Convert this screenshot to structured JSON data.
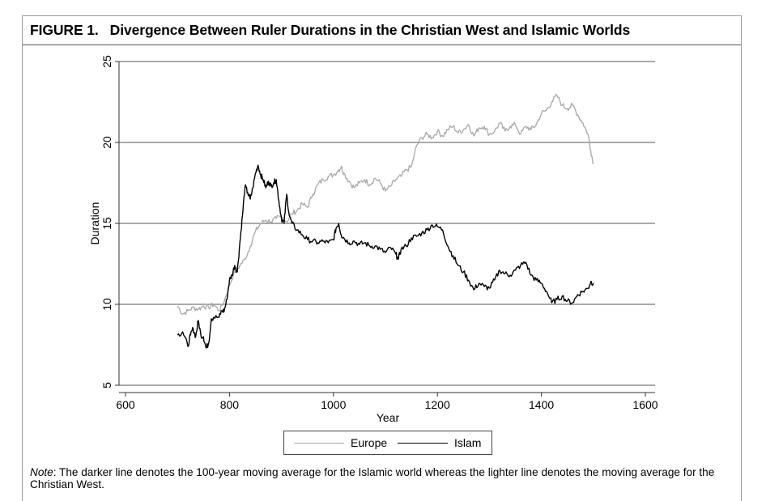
{
  "figure": {
    "label": "FIGURE 1.",
    "title": "Divergence Between Ruler Durations in the Christian West and Islamic Worlds"
  },
  "note": {
    "prefix": "Note",
    "text": ": The darker line denotes the 100-year moving average for the Islamic world whereas the lighter line denotes the moving average for the Christian West."
  },
  "chart_data": {
    "type": "line",
    "xlabel": "Year",
    "ylabel": "Duration",
    "xlim": [
      600,
      1600
    ],
    "ylim": [
      5,
      25
    ],
    "xticks": [
      600,
      800,
      1000,
      1200,
      1400,
      1600
    ],
    "yticks": [
      5,
      10,
      15,
      20,
      25
    ],
    "grid": "horizontal",
    "legend_position": "bottom-center",
    "series": [
      {
        "name": "Europe",
        "color": "#a8a8a8",
        "points": [
          [
            700,
            9.9
          ],
          [
            710,
            9.4
          ],
          [
            720,
            9.6
          ],
          [
            730,
            9.8
          ],
          [
            740,
            9.7
          ],
          [
            750,
            9.9
          ],
          [
            760,
            9.8
          ],
          [
            770,
            10.0
          ],
          [
            780,
            9.6
          ],
          [
            790,
            10.2
          ],
          [
            800,
            11.2
          ],
          [
            810,
            12.0
          ],
          [
            820,
            12.4
          ],
          [
            830,
            12.8
          ],
          [
            840,
            13.6
          ],
          [
            850,
            14.5
          ],
          [
            860,
            15.0
          ],
          [
            870,
            15.2
          ],
          [
            880,
            15.1
          ],
          [
            890,
            15.3
          ],
          [
            900,
            15.4
          ],
          [
            910,
            15.1
          ],
          [
            920,
            15.6
          ],
          [
            930,
            15.8
          ],
          [
            940,
            16.2
          ],
          [
            950,
            16.0
          ],
          [
            960,
            16.8
          ],
          [
            970,
            17.4
          ],
          [
            980,
            17.7
          ],
          [
            990,
            17.9
          ],
          [
            1000,
            18.0
          ],
          [
            1010,
            18.3
          ],
          [
            1015,
            18.5
          ],
          [
            1020,
            18.1
          ],
          [
            1030,
            17.6
          ],
          [
            1040,
            17.2
          ],
          [
            1050,
            17.5
          ],
          [
            1060,
            17.7
          ],
          [
            1070,
            17.4
          ],
          [
            1080,
            17.8
          ],
          [
            1090,
            17.5
          ],
          [
            1100,
            17.0
          ],
          [
            1110,
            17.3
          ],
          [
            1120,
            17.7
          ],
          [
            1130,
            17.9
          ],
          [
            1140,
            18.3
          ],
          [
            1150,
            18.5
          ],
          [
            1160,
            19.8
          ],
          [
            1170,
            20.3
          ],
          [
            1180,
            20.5
          ],
          [
            1190,
            20.3
          ],
          [
            1200,
            20.7
          ],
          [
            1210,
            20.4
          ],
          [
            1220,
            20.8
          ],
          [
            1230,
            21.0
          ],
          [
            1240,
            20.6
          ],
          [
            1250,
            20.8
          ],
          [
            1260,
            21.1
          ],
          [
            1270,
            20.4
          ],
          [
            1280,
            20.9
          ],
          [
            1290,
            21.0
          ],
          [
            1300,
            20.5
          ],
          [
            1310,
            20.7
          ],
          [
            1320,
            21.2
          ],
          [
            1330,
            20.7
          ],
          [
            1340,
            21.0
          ],
          [
            1350,
            21.1
          ],
          [
            1360,
            20.5
          ],
          [
            1370,
            21.0
          ],
          [
            1380,
            20.8
          ],
          [
            1390,
            21.1
          ],
          [
            1400,
            21.8
          ],
          [
            1410,
            22.0
          ],
          [
            1420,
            22.5
          ],
          [
            1430,
            22.9
          ],
          [
            1440,
            22.3
          ],
          [
            1450,
            22.1
          ],
          [
            1460,
            22.3
          ],
          [
            1470,
            21.7
          ],
          [
            1480,
            21.2
          ],
          [
            1490,
            20.5
          ],
          [
            1495,
            19.5
          ],
          [
            1500,
            18.7
          ]
        ]
      },
      {
        "name": "Islam",
        "color": "#000000",
        "points": [
          [
            700,
            8.1
          ],
          [
            710,
            8.3
          ],
          [
            720,
            7.4
          ],
          [
            725,
            8.1
          ],
          [
            730,
            8.5
          ],
          [
            735,
            8.0
          ],
          [
            740,
            9.0
          ],
          [
            745,
            8.1
          ],
          [
            750,
            8.0
          ],
          [
            755,
            7.3
          ],
          [
            760,
            7.6
          ],
          [
            765,
            9.1
          ],
          [
            770,
            9.2
          ],
          [
            780,
            9.2
          ],
          [
            785,
            9.6
          ],
          [
            790,
            9.6
          ],
          [
            795,
            10.3
          ],
          [
            800,
            11.5
          ],
          [
            805,
            11.8
          ],
          [
            810,
            12.4
          ],
          [
            815,
            12.0
          ],
          [
            820,
            13.8
          ],
          [
            825,
            15.5
          ],
          [
            830,
            17.3
          ],
          [
            835,
            16.9
          ],
          [
            840,
            16.5
          ],
          [
            845,
            17.2
          ],
          [
            850,
            18.1
          ],
          [
            855,
            18.6
          ],
          [
            860,
            18.0
          ],
          [
            865,
            17.7
          ],
          [
            870,
            17.2
          ],
          [
            875,
            17.6
          ],
          [
            880,
            17.3
          ],
          [
            885,
            17.5
          ],
          [
            890,
            17.7
          ],
          [
            895,
            16.4
          ],
          [
            900,
            15.3
          ],
          [
            905,
            15.0
          ],
          [
            910,
            16.8
          ],
          [
            915,
            15.5
          ],
          [
            920,
            15.0
          ],
          [
            930,
            14.6
          ],
          [
            940,
            14.3
          ],
          [
            950,
            14.0
          ],
          [
            960,
            13.9
          ],
          [
            970,
            13.8
          ],
          [
            980,
            13.9
          ],
          [
            990,
            13.8
          ],
          [
            1000,
            14.0
          ],
          [
            1005,
            14.7
          ],
          [
            1010,
            15.0
          ],
          [
            1015,
            14.3
          ],
          [
            1020,
            14.1
          ],
          [
            1030,
            13.8
          ],
          [
            1040,
            13.9
          ],
          [
            1050,
            13.7
          ],
          [
            1060,
            13.8
          ],
          [
            1070,
            13.6
          ],
          [
            1080,
            13.6
          ],
          [
            1090,
            13.4
          ],
          [
            1100,
            13.2
          ],
          [
            1110,
            13.5
          ],
          [
            1120,
            13.1
          ],
          [
            1125,
            12.8
          ],
          [
            1130,
            13.4
          ],
          [
            1140,
            13.6
          ],
          [
            1150,
            14.1
          ],
          [
            1160,
            14.2
          ],
          [
            1170,
            14.4
          ],
          [
            1180,
            14.6
          ],
          [
            1190,
            14.9
          ],
          [
            1200,
            14.8
          ],
          [
            1210,
            14.6
          ],
          [
            1220,
            13.6
          ],
          [
            1230,
            13.0
          ],
          [
            1240,
            12.4
          ],
          [
            1250,
            12.0
          ],
          [
            1260,
            11.5
          ],
          [
            1270,
            10.9
          ],
          [
            1280,
            11.3
          ],
          [
            1290,
            11.1
          ],
          [
            1300,
            11.0
          ],
          [
            1310,
            11.5
          ],
          [
            1320,
            12.1
          ],
          [
            1330,
            11.9
          ],
          [
            1340,
            11.8
          ],
          [
            1350,
            12.1
          ],
          [
            1360,
            12.4
          ],
          [
            1370,
            12.6
          ],
          [
            1380,
            11.8
          ],
          [
            1390,
            11.5
          ],
          [
            1400,
            11.3
          ],
          [
            1410,
            10.8
          ],
          [
            1420,
            10.1
          ],
          [
            1430,
            10.3
          ],
          [
            1440,
            10.5
          ],
          [
            1450,
            10.2
          ],
          [
            1460,
            10.1
          ],
          [
            1470,
            10.6
          ],
          [
            1480,
            10.8
          ],
          [
            1490,
            11.0
          ],
          [
            1495,
            11.4
          ],
          [
            1500,
            11.3
          ]
        ]
      }
    ]
  }
}
